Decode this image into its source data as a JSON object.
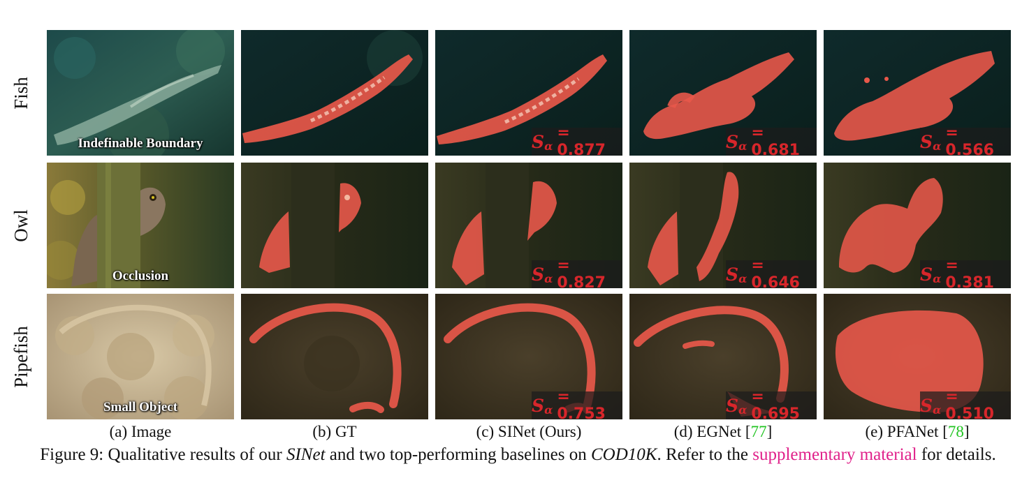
{
  "rows": [
    {
      "label": "Fish",
      "challenge": "Indefinable Boundary"
    },
    {
      "label": "Owl",
      "challenge": "Occlusion"
    },
    {
      "label": "Pipefish",
      "challenge": "Small Object"
    }
  ],
  "score_symbol": "S",
  "score_subscript": "α",
  "scores": {
    "sinet": [
      "= 0.877",
      "= 0.827",
      "= 0.753"
    ],
    "egnet": [
      "= 0.681",
      "= 0.646",
      "= 0.695"
    ],
    "pfanet": [
      "= 0.566",
      "= 0.381",
      "= 0.510"
    ]
  },
  "columns": {
    "a": "(a) Image",
    "b": "(b) GT",
    "c": "(c) SINet (Ours)",
    "d_text": "(d) EGNet [",
    "d_ref": "77",
    "d_close": "]",
    "e_text": "(e) PFANet [",
    "e_ref": "78",
    "e_close": "]"
  },
  "caption": {
    "prefix": "Figure 9: Qualitative results of our ",
    "method": "SINet",
    "middle": " and two top-performing baselines on ",
    "dataset": "COD10K",
    "middle2": ". Refer to the ",
    "link": "supplementary material",
    "suffix": " for details."
  },
  "colors": {
    "highlight": "#e8584a",
    "score_text": "#d8262b",
    "reference": "#22c422",
    "link": "#e0218a"
  }
}
